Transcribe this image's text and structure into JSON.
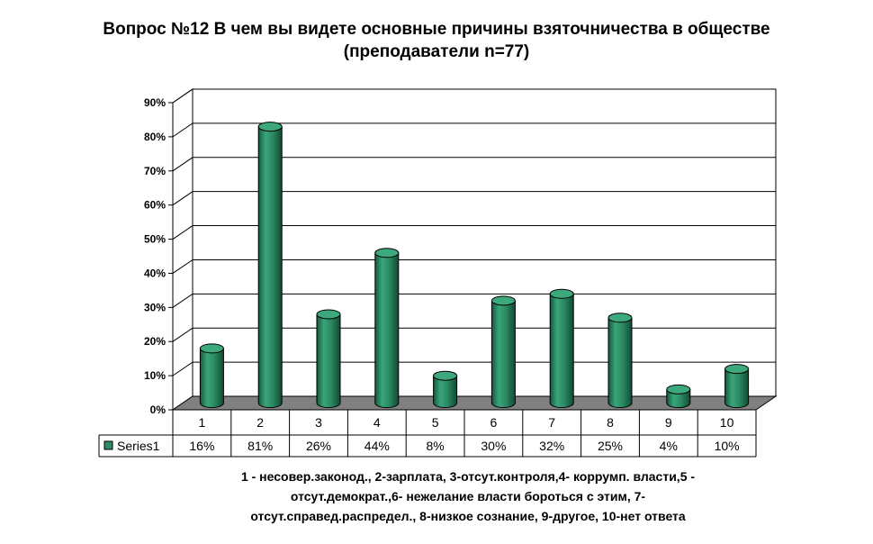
{
  "title": {
    "line1": "Вопрос №12 В чем вы видете основные причины взяточничества в обществе",
    "line2": "(преподаватели n=77)"
  },
  "chart_data": {
    "type": "bar",
    "categories": [
      "1",
      "2",
      "3",
      "4",
      "5",
      "6",
      "7",
      "8",
      "9",
      "10"
    ],
    "series": [
      {
        "name": "Series1",
        "values": [
          16,
          81,
          26,
          44,
          8,
          30,
          32,
          25,
          4,
          10
        ],
        "color": "#2e8b66"
      }
    ],
    "data_labels": [
      "16%",
      "81%",
      "26%",
      "44%",
      "8%",
      "30%",
      "32%",
      "25%",
      "4%",
      "10%"
    ],
    "y_ticks": [
      "0%",
      "10%",
      "20%",
      "30%",
      "40%",
      "50%",
      "60%",
      "70%",
      "80%",
      "90%"
    ],
    "ylim": [
      0,
      90
    ],
    "grid": true,
    "legend": "data-table",
    "floor_color": "#808080"
  },
  "footnote": {
    "line1": "1 - несовер.законод., 2-зарплата, 3-отсут.контроля,4- коррумп. власти,5 -",
    "line2": "отсут.демократ.,6- нежелание власти бороться с этим, 7-",
    "line3": "отсут.справед.распредел., 8-низкое сознание, 9-другое, 10-нет ответа"
  }
}
